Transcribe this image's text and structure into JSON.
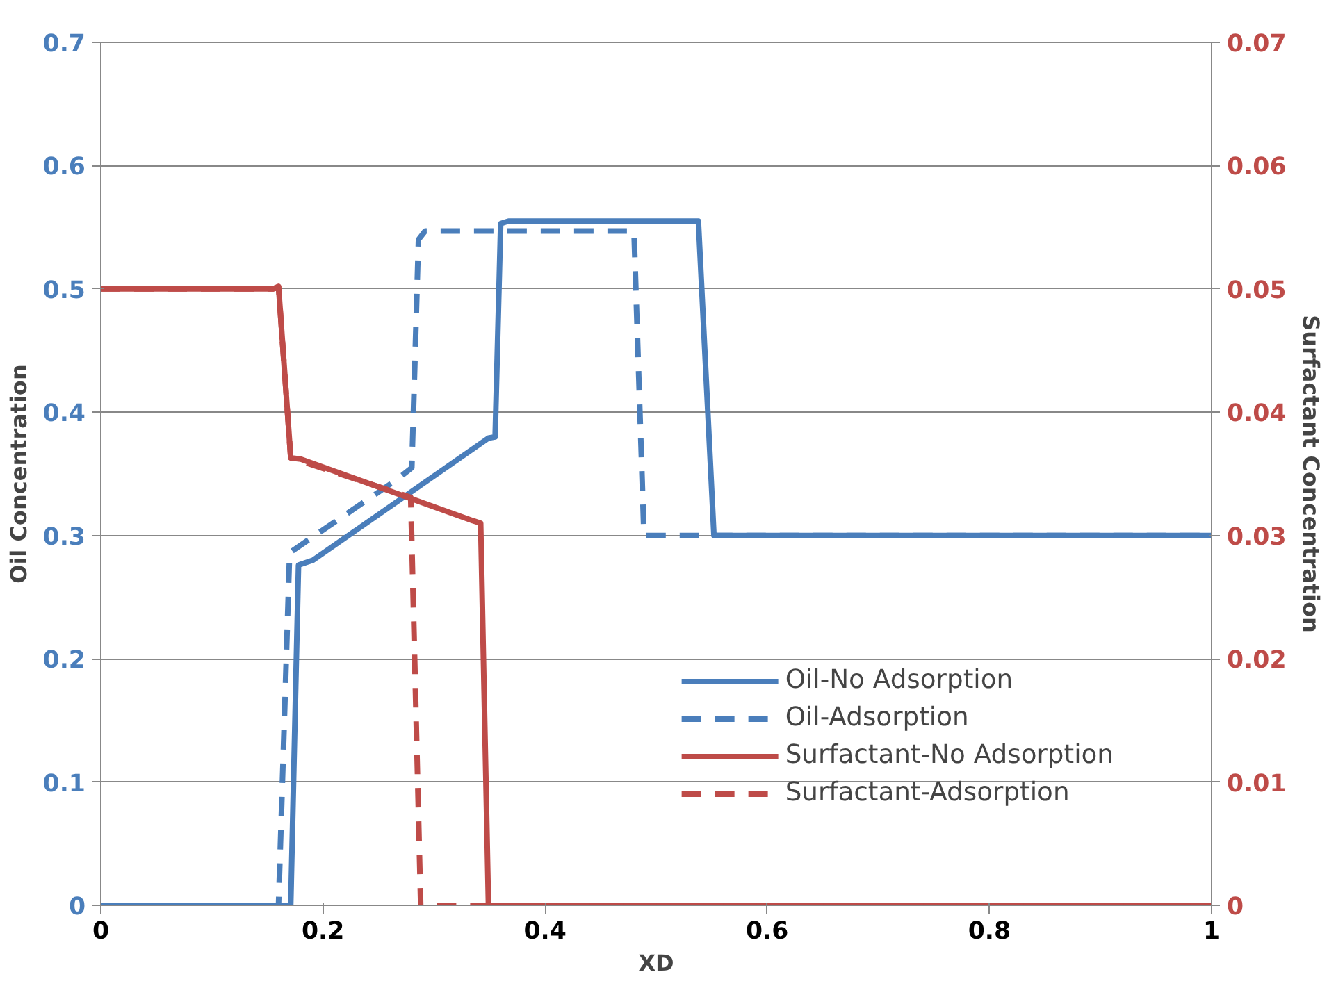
{
  "chart_data": {
    "type": "line",
    "xlabel": "XD",
    "ylabel": "Oil Concentration",
    "y2label": "Surfactant Concentration",
    "xlim": [
      0,
      1
    ],
    "xticks": [
      0,
      0.2,
      0.4,
      0.6,
      0.8,
      1
    ],
    "ylim": [
      0,
      0.7
    ],
    "yticks": [
      0,
      0.1,
      0.2,
      0.3,
      0.4,
      0.5,
      0.6,
      0.7
    ],
    "y2lim": [
      0,
      0.07
    ],
    "y2ticks": [
      0,
      0.01,
      0.02,
      0.03,
      0.04,
      0.05,
      0.06,
      0.07
    ],
    "grid": "y",
    "legend": "bottom right",
    "series": [
      {
        "name": "Oil-No Adsorption",
        "color": "#4a7ebb",
        "line_style": "solid",
        "x": [
          0,
          0.171,
          0.178,
          0.191,
          0.349,
          0.355,
          0.36,
          0.367,
          0.538,
          0.552,
          1
        ],
        "values": [
          0,
          0,
          0.276,
          0.28,
          0.379,
          0.38,
          0.553,
          0.555,
          0.555,
          0.3,
          0.3
        ]
      },
      {
        "name": "Oil-Adsorption",
        "color": "#4a7ebb",
        "line_style": "dashed",
        "x": [
          0,
          0.16,
          0.17,
          0.266,
          0.28,
          0.286,
          0.292,
          0.48,
          0.489,
          1
        ],
        "values": [
          0,
          0,
          0.286,
          0.345,
          0.355,
          0.54,
          0.547,
          0.547,
          0.3,
          0.3
        ]
      },
      {
        "name": "Surfactant-No Adsorption",
        "color": "#be4b48",
        "line_style": "solid",
        "axis": "y2",
        "x": [
          0,
          0.155,
          0.16,
          0.171,
          0.18,
          0.335,
          0.342,
          0.349,
          1
        ],
        "values": [
          0.05,
          0.05,
          0.0502,
          0.0363,
          0.0362,
          0.0312,
          0.031,
          0,
          0
        ]
      },
      {
        "name": "Surfactant-Adsorption",
        "color": "#be4b48",
        "line_style": "dashed",
        "axis": "y2",
        "x": [
          0,
          0.155,
          0.16,
          0.171,
          0.279,
          0.288,
          1
        ],
        "values": [
          0.05,
          0.05,
          0.0502,
          0.0363,
          0.0331,
          0,
          0
        ]
      }
    ]
  }
}
